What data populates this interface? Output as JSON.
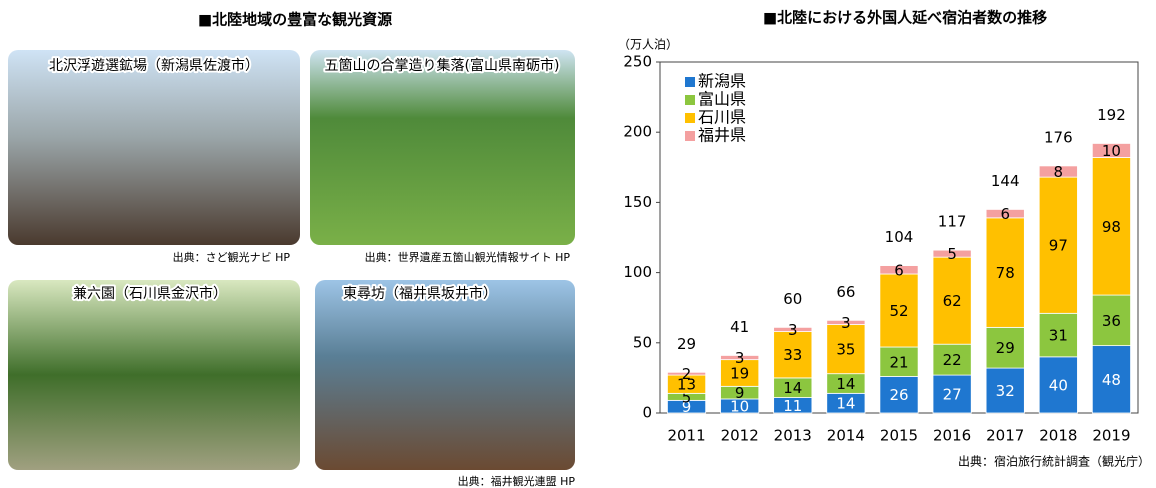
{
  "left_title": "■北陸地域の豊富な観光資源",
  "photos": [
    {
      "label": "北沢浮遊選鉱場（新潟県佐渡市）",
      "source": "出典：さど観光ナビ HP"
    },
    {
      "label": "五箇山の合掌造り集落(富山県南砺市)",
      "source": "出典：世界遺産五箇山観光情報サイト HP"
    },
    {
      "label": "兼六園（石川県金沢市）"
    },
    {
      "label": "東尋坊（福井県坂井市）",
      "source": "出典：福井観光連盟 HP"
    }
  ],
  "chart_data": {
    "type": "stacked_bar",
    "title": "■北陸における外国人延べ宿泊者数の推移",
    "y_label": "（万人泊）",
    "source": "出典：宿泊旅行統計調査（観光庁）",
    "categories": [
      "2011",
      "2012",
      "2013",
      "2014",
      "2015",
      "2016",
      "2017",
      "2018",
      "2019"
    ],
    "series": [
      {
        "name": "新潟県",
        "color": "#1f77d0",
        "values": [
          9,
          10,
          11,
          14,
          26,
          27,
          32,
          40,
          48
        ]
      },
      {
        "name": "富山県",
        "color": "#8cc63f",
        "values": [
          5,
          9,
          14,
          14,
          21,
          22,
          29,
          31,
          36
        ]
      },
      {
        "name": "石川県",
        "color": "#ffc000",
        "values": [
          13,
          19,
          33,
          35,
          52,
          62,
          78,
          97,
          98
        ]
      },
      {
        "name": "福井県",
        "color": "#f4a0a0",
        "values": [
          2,
          3,
          3,
          3,
          6,
          5,
          6,
          8,
          10
        ]
      }
    ],
    "totals": [
      29,
      41,
      60,
      66,
      104,
      117,
      144,
      176,
      192
    ],
    "ylim": [
      0,
      250
    ],
    "yticks": [
      0,
      50,
      100,
      150,
      200,
      250
    ],
    "grid": false,
    "legend": "top-left"
  }
}
